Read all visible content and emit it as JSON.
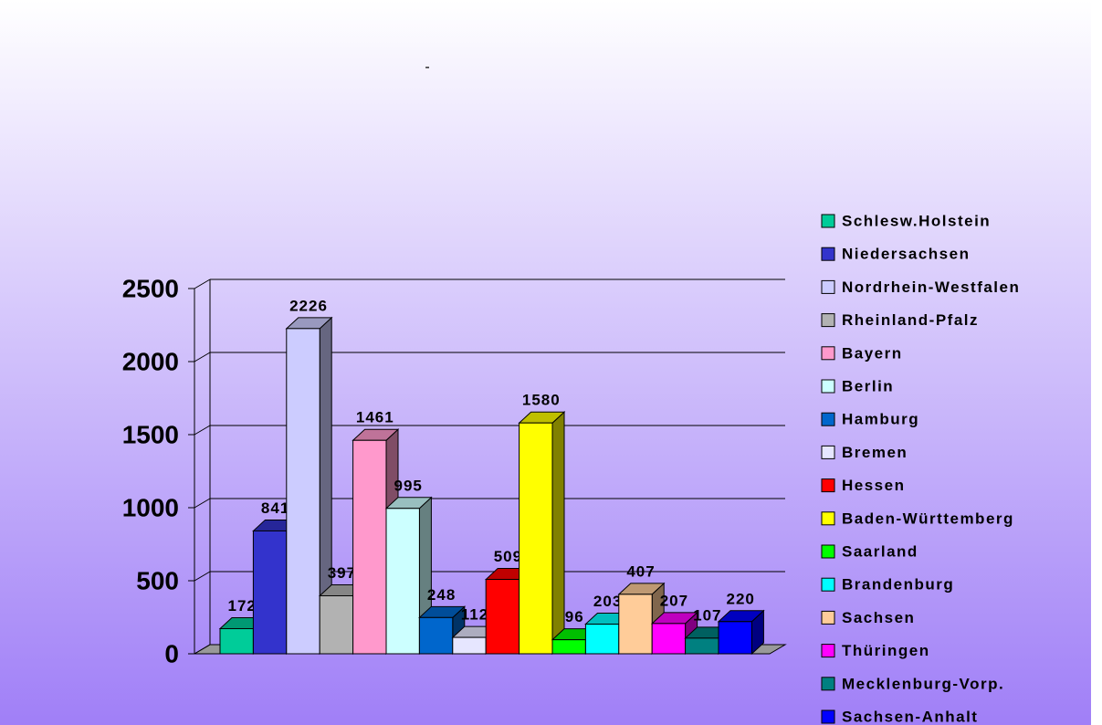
{
  "chart_data": {
    "type": "bar3d",
    "title": "-",
    "categories": [
      "Schlesw.Holstein",
      "Niedersachsen",
      "Nordrhein-Westfalen",
      "Rheinland-Pfalz",
      "Bayern",
      "Berlin",
      "Hamburg",
      "Bremen",
      "Hessen",
      "Baden-Württemberg",
      "Saarland",
      "Brandenburg",
      "Sachsen",
      "Thüringen",
      "Mecklenburg-Vorp.",
      "Sachsen-Anhalt"
    ],
    "values": [
      172,
      841,
      2226,
      397,
      1461,
      995,
      248,
      112,
      509,
      1580,
      96,
      203,
      407,
      207,
      107,
      220
    ],
    "colors": [
      "#00cc99",
      "#3333cc",
      "#ccccff",
      "#b2b2b2",
      "#ff99cc",
      "#ccffff",
      "#0066cc",
      "#e6e6ff",
      "#ff0000",
      "#ffff00",
      "#00ff00",
      "#00ffff",
      "#ffcc99",
      "#ff00ff",
      "#008080",
      "#0000ff"
    ],
    "ylim": [
      0,
      2500
    ],
    "yticks": [
      0,
      500,
      1000,
      1500,
      2000,
      2500
    ],
    "grid": true,
    "legend": "right"
  }
}
